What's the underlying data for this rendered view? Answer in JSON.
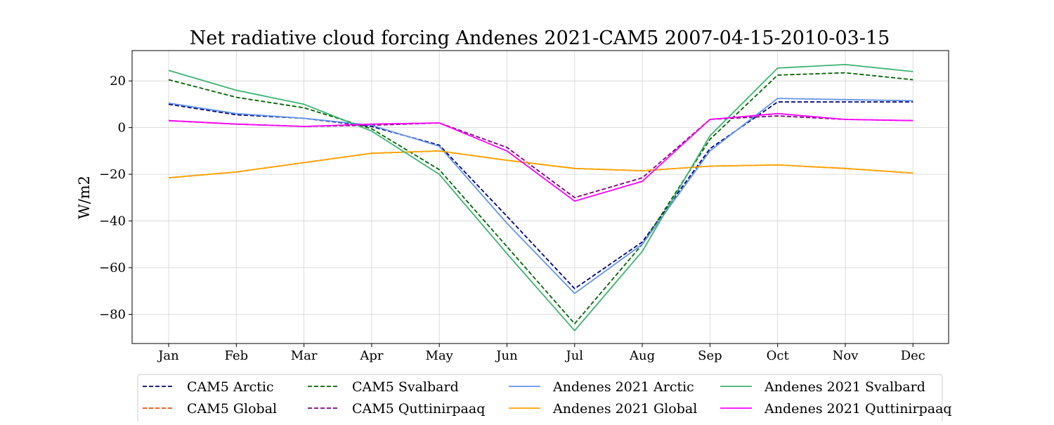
{
  "chart_data": {
    "type": "line",
    "title": "Net radiative cloud forcing Andenes 2021-CAM5 2007-04-15-2010-03-15",
    "xlabel": "",
    "ylabel": "W/m2",
    "ylim": [
      -92.5,
      33
    ],
    "yticks": [
      20,
      0,
      -20,
      -40,
      -60,
      -80
    ],
    "ytick_labels": [
      "20",
      "0",
      "−20",
      "−40",
      "−60",
      "−80"
    ],
    "categories": [
      "Jan",
      "Feb",
      "Mar",
      "Apr",
      "May",
      "Jun",
      "Jul",
      "Aug",
      "Sep",
      "Oct",
      "Nov",
      "Dec"
    ],
    "grid": true,
    "legend_position": "bottom, outside plot, 4 columns",
    "series": [
      {
        "name": "CAM5 Arctic",
        "color": "#000080",
        "dashed": true,
        "values": [
          10,
          5.5,
          4,
          0.5,
          -7.5,
          -38,
          -69,
          -49,
          -9,
          11,
          11,
          11
        ]
      },
      {
        "name": "CAM5 Global",
        "color": "#ff4500",
        "dashed": true,
        "values": [
          -21.5,
          -19,
          -15,
          -11,
          -10,
          -14,
          -17.5,
          -18.5,
          -16.5,
          -16,
          -17.5,
          -19.5
        ]
      },
      {
        "name": "CAM5 Svalbard",
        "color": "#006400",
        "dashed": true,
        "values": [
          20.5,
          13,
          8.5,
          -0.5,
          -18,
          -51,
          -84,
          -50,
          -5,
          22.5,
          23.5,
          20.5
        ]
      },
      {
        "name": "CAM5 Quttinirpaaq",
        "color": "#800080",
        "dashed": true,
        "values": [
          3,
          1.5,
          0.5,
          1,
          2,
          -8.5,
          -30,
          -21.5,
          3.5,
          5,
          3.5,
          3
        ]
      },
      {
        "name": "Andenes 2021 Arctic",
        "color": "#6495ed",
        "dashed": false,
        "values": [
          10.5,
          6,
          4,
          1,
          -8,
          -41,
          -71,
          -50,
          -10,
          12.5,
          12,
          11.5
        ]
      },
      {
        "name": "Andenes 2021 Global",
        "color": "#ffa500",
        "dashed": false,
        "values": [
          -21.5,
          -19,
          -15,
          -11,
          -10,
          -14,
          -17.5,
          -18.5,
          -16.5,
          -16,
          -17.5,
          -19.5
        ]
      },
      {
        "name": "Andenes 2021 Svalbard",
        "color": "#3cb371",
        "dashed": false,
        "values": [
          24.5,
          16,
          10,
          -1.5,
          -20,
          -54,
          -87,
          -53,
          -3.5,
          25.5,
          27,
          24
        ]
      },
      {
        "name": "Andenes 2021 Quttinirpaaq",
        "color": "#ff00ff",
        "dashed": false,
        "values": [
          3,
          1.5,
          0.5,
          1.5,
          2,
          -10,
          -31.5,
          -23,
          3.5,
          6,
          3.5,
          3
        ]
      }
    ]
  }
}
